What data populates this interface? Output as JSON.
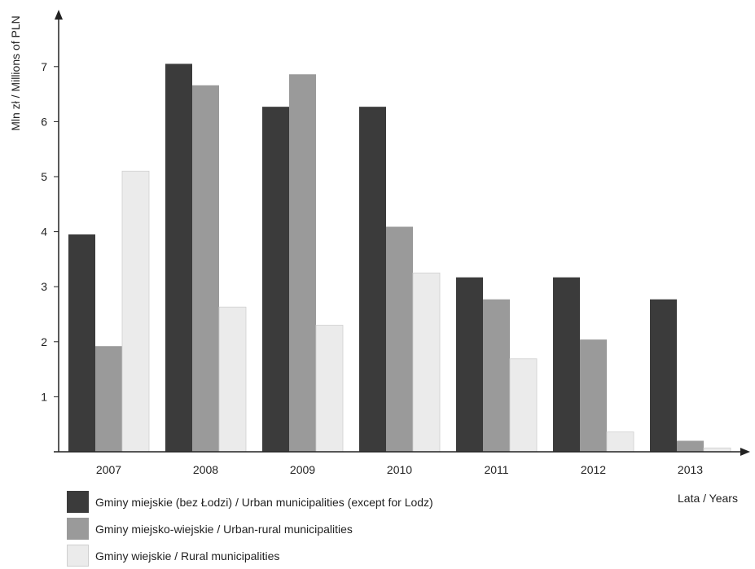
{
  "chart_data": {
    "type": "bar",
    "title": "",
    "ylabel": "Mln zł / Millions of PLN",
    "xlabel": "Lata / Years",
    "categories": [
      "2007",
      "2008",
      "2009",
      "2010",
      "2011",
      "2012",
      "2013"
    ],
    "y_ticks": [
      1,
      2,
      3,
      4,
      5,
      6,
      7
    ],
    "ylim": [
      0,
      8
    ],
    "grid": false,
    "legend_position": "bottom-left",
    "series": [
      {
        "name": "Gminy miejskie (bez Łodzi) / Urban municipalities (except for Lodz)",
        "color": "#3b3b3b",
        "values": [
          3.95,
          7.05,
          6.27,
          6.27,
          3.17,
          3.17,
          2.77
        ]
      },
      {
        "name": "Gminy miejsko-wiejskie / Urban-rural municipalities",
        "color": "#9a9a9a",
        "values": [
          1.92,
          6.66,
          6.86,
          4.09,
          2.77,
          2.04,
          0.2
        ]
      },
      {
        "name": "Gminy wiejskie / Rural municipalities",
        "color": "#ebebeb",
        "values": [
          5.1,
          2.63,
          2.3,
          3.25,
          1.69,
          0.36,
          0.07
        ]
      }
    ]
  }
}
